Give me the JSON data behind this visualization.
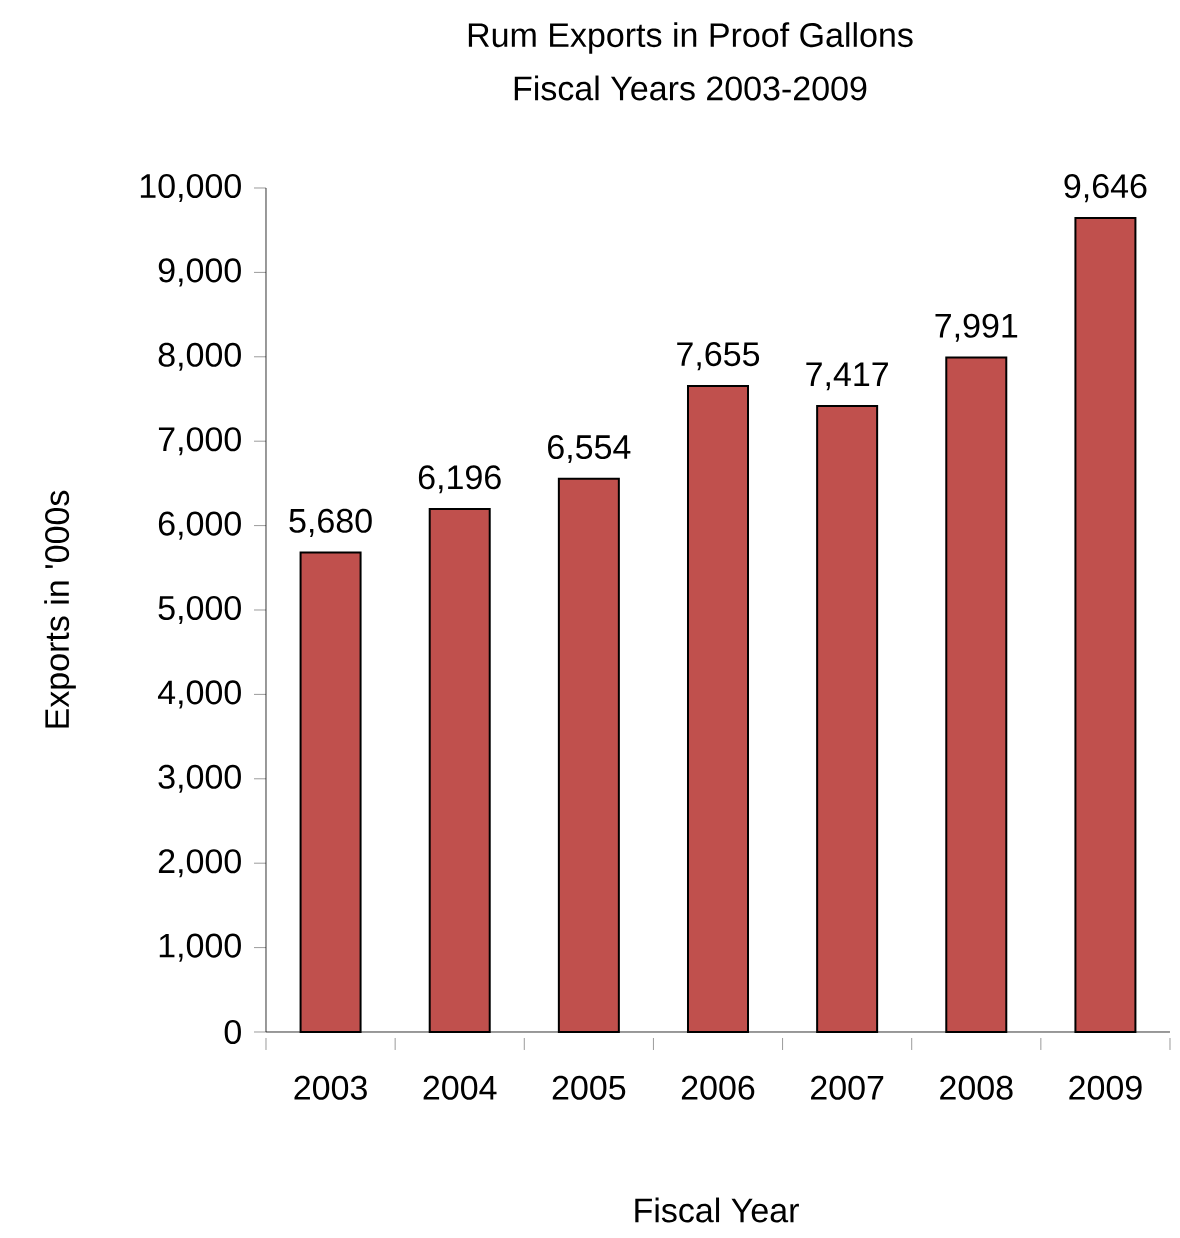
{
  "chart_data": {
    "type": "bar",
    "title": "Rum Exports in Proof Gallons",
    "subtitle": "Fiscal  Years 2003-2009",
    "xlabel": "Fiscal Year",
    "ylabel": "Exports in '000s",
    "categories": [
      "2003",
      "2004",
      "2005",
      "2006",
      "2007",
      "2008",
      "2009"
    ],
    "values": [
      5680,
      6196,
      6554,
      7655,
      7417,
      7991,
      9646
    ],
    "value_labels": [
      "5,680",
      "6,196",
      "6,554",
      "7,655",
      "7,417",
      "7,991",
      "9,646"
    ],
    "color": "#c0504d",
    "ylim": [
      0,
      10000
    ],
    "yticks": [
      0,
      {
        "value": 1000,
        "label": "1,000"
      },
      {
        "value": 2000,
        "label": "2,000"
      },
      {
        "value": 3000,
        "label": "3,000"
      },
      {
        "value": 4000,
        "label": "4,000"
      },
      {
        "value": 5000,
        "label": "5,000"
      },
      {
        "value": 6000,
        "label": "6,000"
      },
      {
        "value": 7000,
        "label": "7,000"
      },
      {
        "value": 8000,
        "label": "8,000"
      },
      {
        "value": 9000,
        "label": "9,000"
      },
      {
        "value": 10000,
        "label": "10,000"
      }
    ],
    "grid": false
  }
}
